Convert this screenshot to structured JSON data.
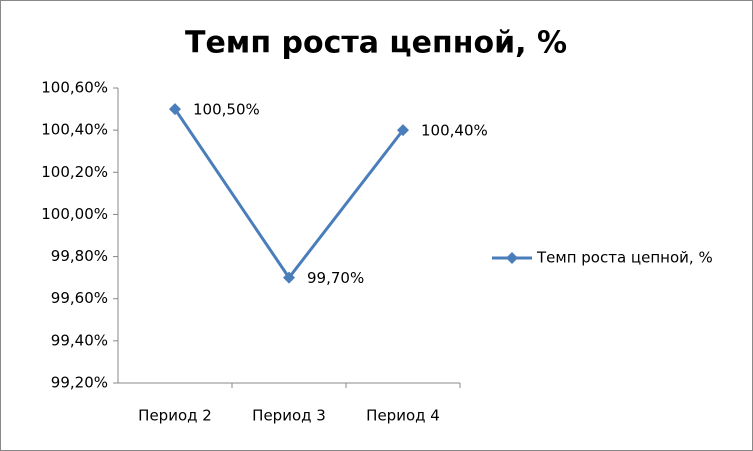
{
  "chart_data": {
    "type": "line",
    "title": "Темп роста цепной, %",
    "categories": [
      "Период 2",
      "Период 3",
      "Период 4"
    ],
    "series": [
      {
        "name": "Темп роста цепной, %",
        "color": "#4a7ebb",
        "values": [
          100.5,
          99.7,
          100.4
        ],
        "value_labels": [
          "100,50%",
          "99,70%",
          "100,40%"
        ]
      }
    ],
    "ylim": [
      99.2,
      100.6
    ],
    "yticks": [
      {
        "value": 99.2,
        "label": "99,20%"
      },
      {
        "value": 99.4,
        "label": "99,40%"
      },
      {
        "value": 99.6,
        "label": "99,60%"
      },
      {
        "value": 99.8,
        "label": "99,80%"
      },
      {
        "value": 100.0,
        "label": "100,00%"
      },
      {
        "value": 100.2,
        "label": "100,20%"
      },
      {
        "value": 100.4,
        "label": "100,40%"
      },
      {
        "value": 100.6,
        "label": "100,60%"
      }
    ],
    "grid": false,
    "legend": "right"
  }
}
